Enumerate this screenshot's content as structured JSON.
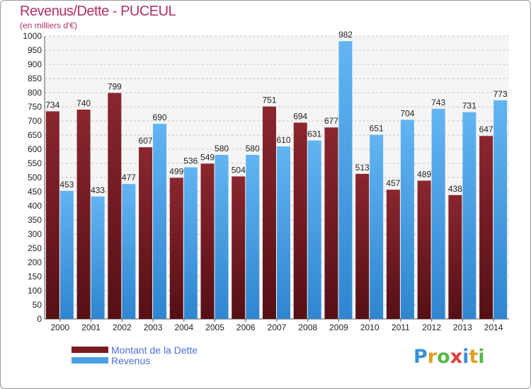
{
  "header": {
    "title": "Revenus/Dette - PUCEUL",
    "subtitle": "(en milliers d'€)"
  },
  "logo": {
    "letters": [
      "P",
      "r",
      "o",
      "x",
      "i",
      "t",
      "i"
    ],
    "colors": [
      "#3a8fd9",
      "#e0a020",
      "#58b848",
      "#e04040",
      "#3a8fd9",
      "#e0a020",
      "#58b848"
    ]
  },
  "chart_data": {
    "type": "bar",
    "categories": [
      "2000",
      "2001",
      "2002",
      "2003",
      "2004",
      "2005",
      "2006",
      "2007",
      "2008",
      "2009",
      "2010",
      "2011",
      "2012",
      "2013",
      "2014"
    ],
    "series": [
      {
        "name": "Montant de la Dette",
        "color": "#7a1a22",
        "values": [
          734,
          740,
          799,
          607,
          499,
          549,
          504,
          751,
          694,
          677,
          513,
          457,
          489,
          438,
          647
        ]
      },
      {
        "name": "Revenus",
        "color": "#4aa0e6",
        "values": [
          453,
          433,
          477,
          690,
          536,
          580,
          580,
          610,
          631,
          982,
          651,
          704,
          743,
          731,
          773
        ]
      }
    ],
    "ylim": [
      0,
      1000
    ],
    "ytick_step": 50,
    "grid": true,
    "legend": "bottom-left"
  }
}
